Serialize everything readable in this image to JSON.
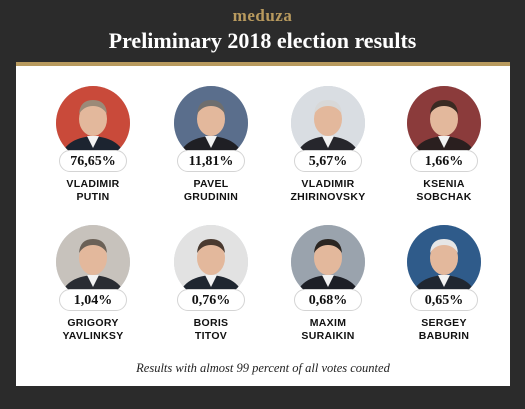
{
  "header": {
    "brand": "meduza",
    "title": "Preliminary 2018 election results"
  },
  "chart_data": {
    "type": "table",
    "title": "Preliminary 2018 election results",
    "note": "Results with almost 99 percent of all votes counted",
    "candidates": [
      {
        "first": "VLADIMIR",
        "last": "PUTIN",
        "value": 76.65,
        "label": "76,65%"
      },
      {
        "first": "PAVEL",
        "last": "GRUDININ",
        "value": 11.81,
        "label": "11,81%"
      },
      {
        "first": "VLADIMIR",
        "last": "ZHIRINOVSKY",
        "value": 5.67,
        "label": "5,67%"
      },
      {
        "first": "KSENIA",
        "last": "SOBCHAK",
        "value": 1.66,
        "label": "1,66%"
      },
      {
        "first": "GRIGORY",
        "last": "YAVLINKSY",
        "value": 1.04,
        "label": "1,04%"
      },
      {
        "first": "BORIS",
        "last": "TITOV",
        "value": 0.76,
        "label": "0,76%"
      },
      {
        "first": "MAXIM",
        "last": "SURAIKIN",
        "value": 0.68,
        "label": "0,68%"
      },
      {
        "first": "SERGEY",
        "last": "BABURIN",
        "value": 0.65,
        "label": "0,65%"
      }
    ]
  },
  "colors": {
    "accent": "#b89a5e",
    "background": "#2b2b2b",
    "card": "#ffffff"
  }
}
